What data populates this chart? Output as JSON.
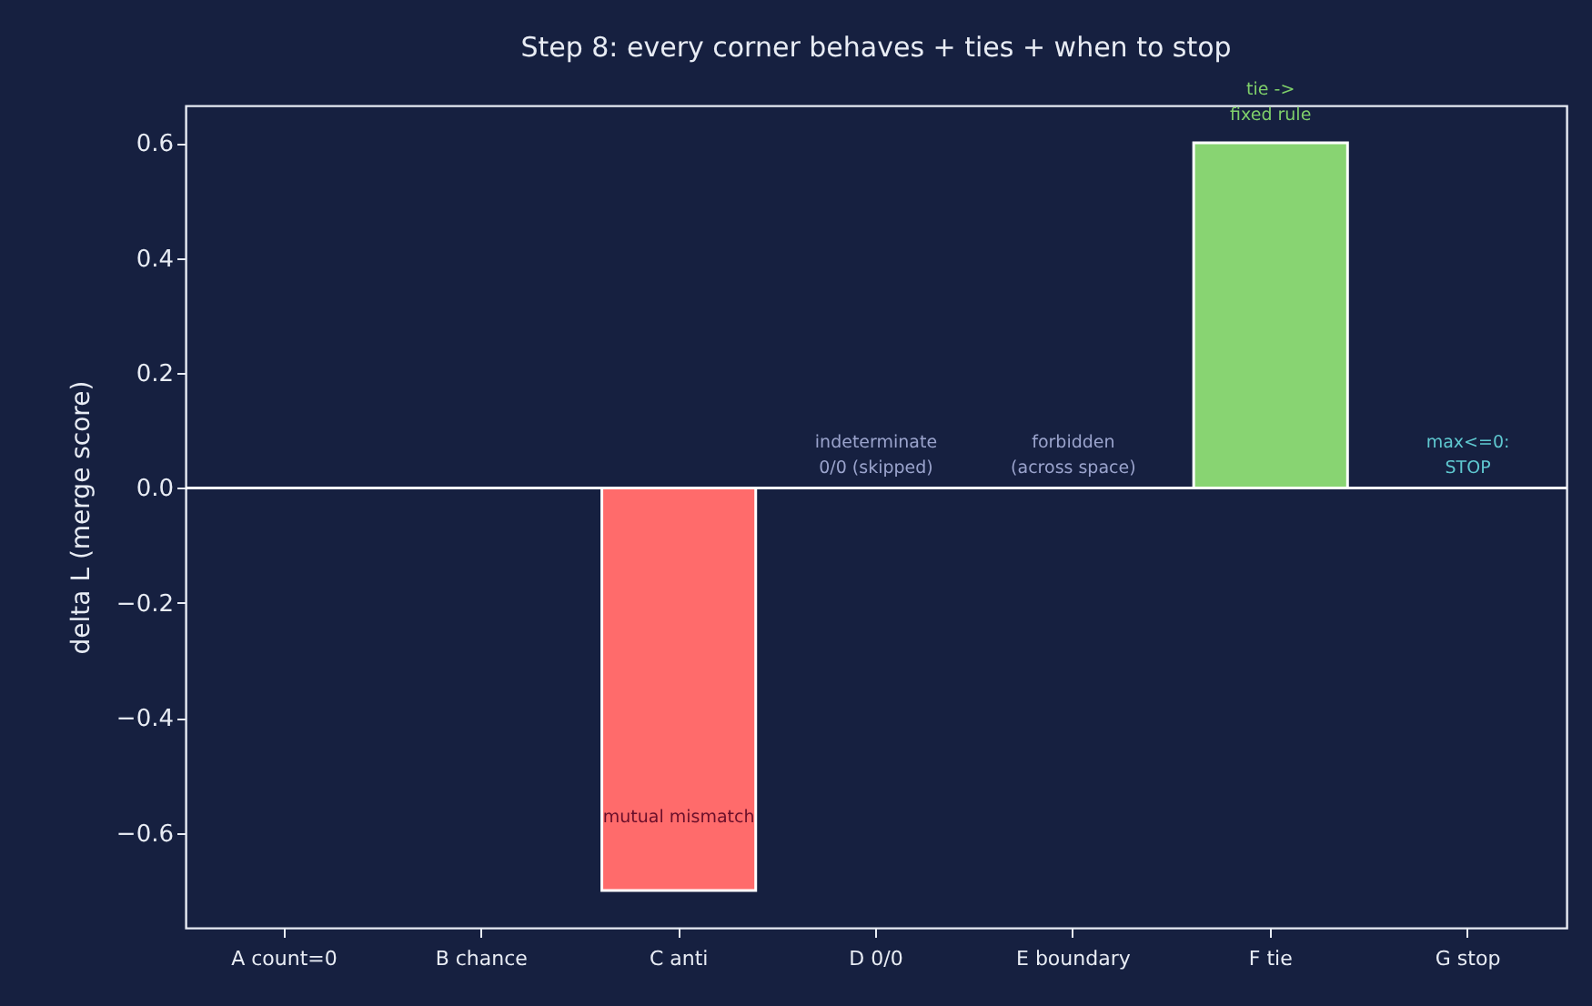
{
  "chart_data": {
    "type": "bar",
    "title": "Step 8: every corner behaves + ties + when to stop",
    "ylabel": "delta L (merge score)",
    "categories": [
      "A count=0",
      "B chance",
      "C anti",
      "D 0/0",
      "E boundary",
      "F tie",
      "G stop"
    ],
    "values": [
      null,
      null,
      -0.7,
      null,
      null,
      0.6,
      null
    ],
    "colors": [
      null,
      null,
      "#ff6b6b",
      null,
      null,
      "#88d472",
      null
    ],
    "ylim": [
      -0.765,
      0.665
    ],
    "yticks": [
      -0.6,
      -0.4,
      -0.2,
      {
        "value": 0,
        "label": "0.0"
      },
      0.2,
      0.4,
      0.6
    ],
    "grid": false,
    "ref_lines": [
      {
        "axis": "y",
        "value": 0,
        "color": "#ffffff"
      }
    ],
    "annotations": [
      "indeterminate\n0/0 (skipped)",
      "forbidden\n(across space)",
      "max<=0:\nSTOP",
      "mutual mismatch",
      "tie ->\nfixed rule"
    ]
  }
}
